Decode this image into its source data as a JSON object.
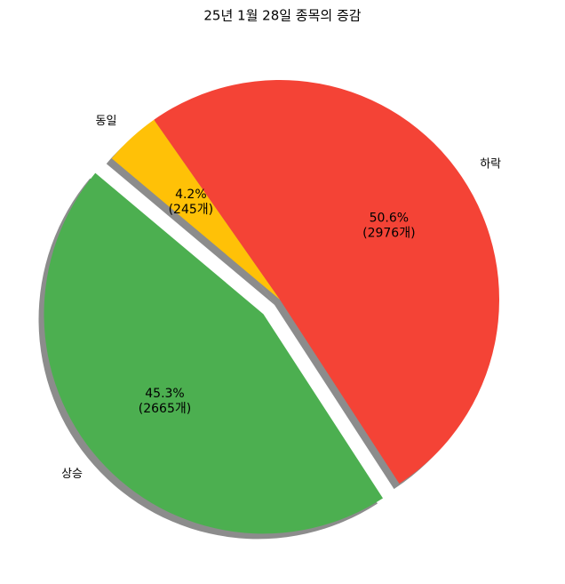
{
  "chart_data": {
    "type": "pie",
    "title": "25년 1월 28일 종목의 증감",
    "categories": [
      "상승",
      "하락",
      "동일"
    ],
    "values": [
      2665,
      2976,
      245
    ],
    "value_labels": [
      [
        "45.3%",
        "(2665개)"
      ],
      [
        "50.6%",
        "(2976개)"
      ],
      [
        "4.2%",
        "(245개)"
      ]
    ],
    "colors": [
      "#4caf50",
      "#f44336",
      "#ffc107"
    ],
    "explode": [
      0.1,
      0,
      0
    ],
    "startangle": 140,
    "shadow": true
  }
}
